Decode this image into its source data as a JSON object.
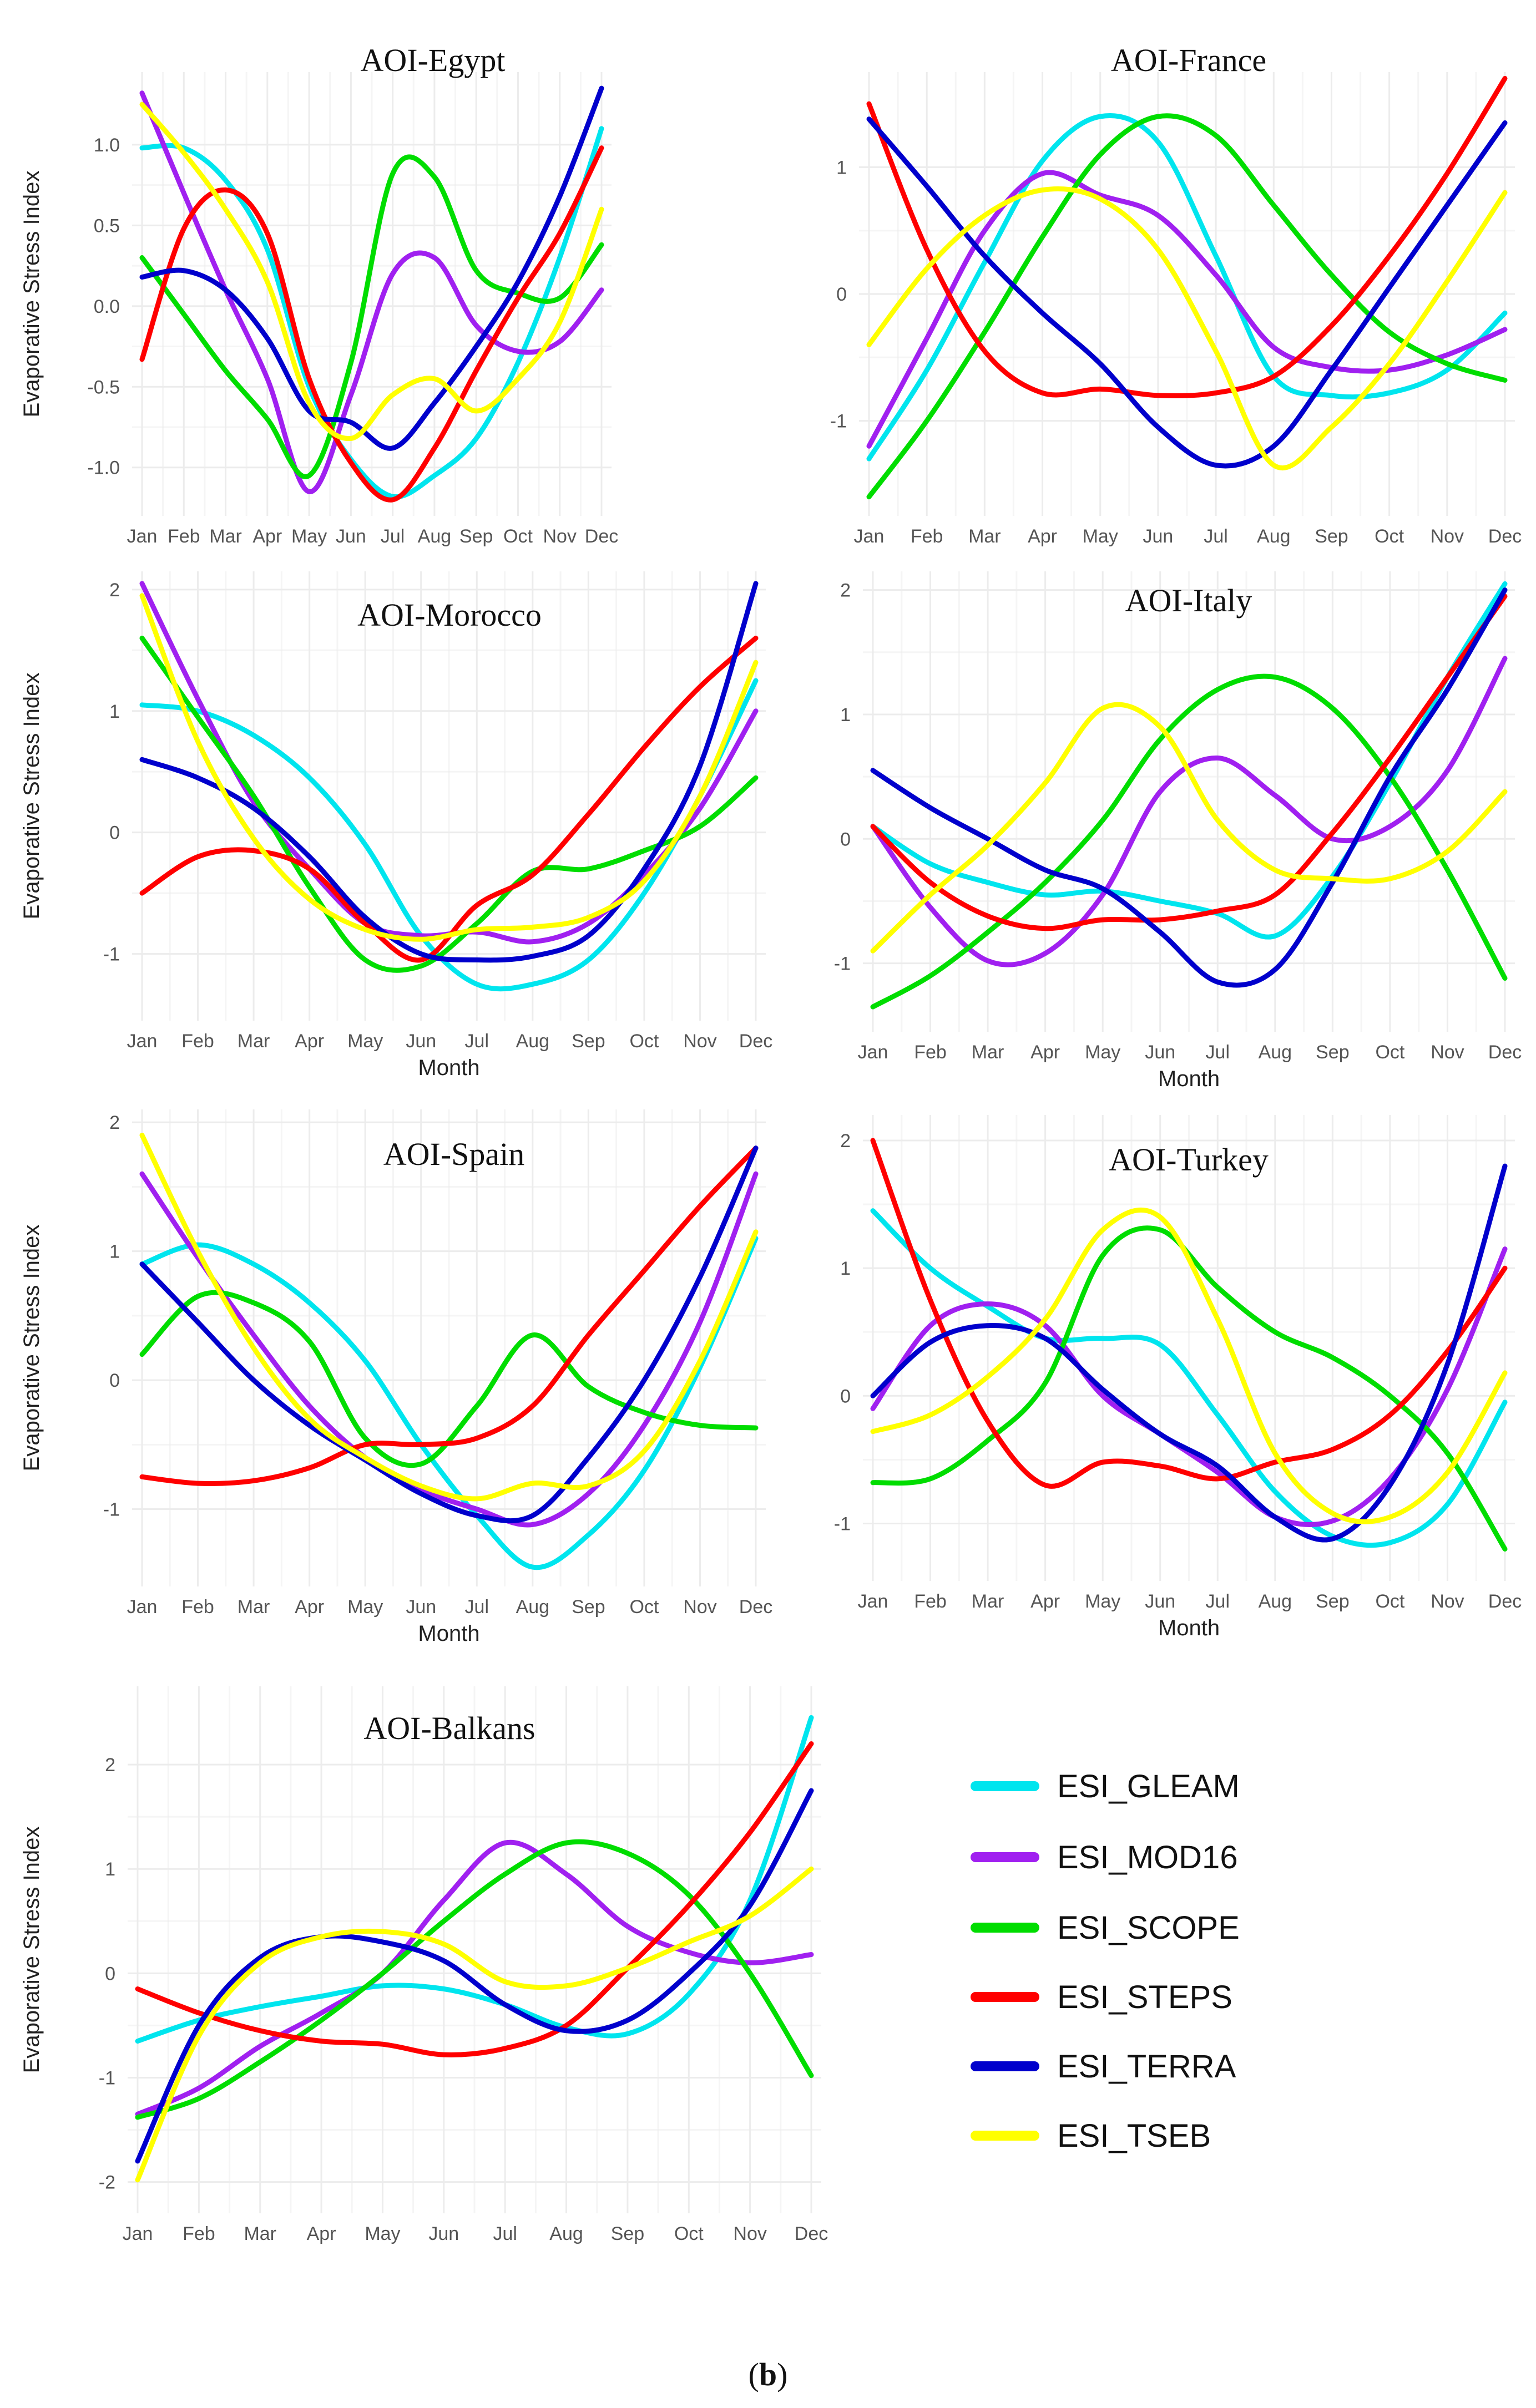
{
  "figure": {
    "caption_open": "(",
    "caption_letter": "b",
    "caption_close": ")"
  },
  "series_styles": [
    {
      "name": "ESI_GLEAM",
      "color": "#00e5ee"
    },
    {
      "name": "ESI_MOD16",
      "color": "#a020f0"
    },
    {
      "name": "ESI_SCOPE",
      "color": "#00dd00"
    },
    {
      "name": "ESI_STEPS",
      "color": "#ff0000"
    },
    {
      "name": "ESI_TERRA",
      "color": "#0000cc"
    },
    {
      "name": "ESI_TSEB",
      "color": "#ffff00"
    }
  ],
  "chart_data": [
    {
      "type": "line",
      "title": "AOI-Egypt",
      "xlabel": "",
      "ylabel": "Evaporative Stress Index",
      "categories": [
        "Jan",
        "Feb",
        "Mar",
        "Apr",
        "May",
        "Jun",
        "Jul",
        "Aug",
        "Sep",
        "Oct",
        "Nov",
        "Dec"
      ],
      "ylim": [
        -1.3,
        1.45
      ],
      "yticks": [
        1.0,
        0.5,
        0.0,
        -0.5,
        -1.0
      ],
      "ytick_labels": [
        "1.0",
        "0.5",
        "0.0",
        "-0.5",
        "-1.0"
      ],
      "series": [
        {
          "name": "ESI_GLEAM",
          "values": [
            0.98,
            0.98,
            0.78,
            0.35,
            -0.5,
            -0.95,
            -1.18,
            -1.05,
            -0.82,
            -0.35,
            0.3,
            1.1
          ]
        },
        {
          "name": "ESI_MOD16",
          "values": [
            1.32,
            0.7,
            0.1,
            -0.45,
            -1.15,
            -0.55,
            0.2,
            0.3,
            -0.12,
            -0.28,
            -0.22,
            0.1
          ]
        },
        {
          "name": "ESI_SCOPE",
          "values": [
            0.3,
            -0.05,
            -0.4,
            -0.7,
            -1.05,
            -0.35,
            0.82,
            0.8,
            0.22,
            0.08,
            0.05,
            0.38
          ]
        },
        {
          "name": "ESI_STEPS",
          "values": [
            -0.33,
            0.48,
            0.72,
            0.45,
            -0.45,
            -0.97,
            -1.2,
            -0.88,
            -0.4,
            0.05,
            0.45,
            0.98
          ]
        },
        {
          "name": "ESI_TERRA",
          "values": [
            0.18,
            0.22,
            0.1,
            -0.2,
            -0.65,
            -0.72,
            -0.88,
            -0.6,
            -0.25,
            0.15,
            0.68,
            1.35
          ]
        },
        {
          "name": "ESI_TSEB",
          "values": [
            1.25,
            0.95,
            0.6,
            0.15,
            -0.6,
            -0.82,
            -0.55,
            -0.45,
            -0.65,
            -0.45,
            -0.1,
            0.6
          ]
        }
      ]
    },
    {
      "type": "line",
      "title": "AOI-France",
      "xlabel": "",
      "ylabel": "",
      "categories": [
        "Jan",
        "Feb",
        "Mar",
        "Apr",
        "May",
        "Jun",
        "Jul",
        "Aug",
        "Sep",
        "Oct",
        "Nov",
        "Dec"
      ],
      "ylim": [
        -1.75,
        1.75
      ],
      "yticks": [
        1,
        0,
        -1
      ],
      "ytick_labels": [
        "1",
        "0",
        "-1"
      ],
      "series": [
        {
          "name": "ESI_GLEAM",
          "values": [
            -1.3,
            -0.6,
            0.25,
            1.05,
            1.4,
            1.2,
            0.3,
            -0.65,
            -0.8,
            -0.78,
            -0.6,
            -0.15
          ]
        },
        {
          "name": "ESI_MOD16",
          "values": [
            -1.2,
            -0.35,
            0.5,
            0.95,
            0.78,
            0.62,
            0.15,
            -0.42,
            -0.58,
            -0.6,
            -0.48,
            -0.28
          ]
        },
        {
          "name": "ESI_SCOPE",
          "values": [
            -1.6,
            -1.0,
            -0.3,
            0.45,
            1.1,
            1.4,
            1.25,
            0.7,
            0.15,
            -0.3,
            -0.55,
            -0.68
          ]
        },
        {
          "name": "ESI_STEPS",
          "values": [
            1.5,
            0.35,
            -0.45,
            -0.78,
            -0.75,
            -0.8,
            -0.78,
            -0.65,
            -0.25,
            0.3,
            0.95,
            1.7
          ]
        },
        {
          "name": "ESI_TERRA",
          "values": [
            1.38,
            0.85,
            0.3,
            -0.15,
            -0.55,
            -1.05,
            -1.35,
            -1.2,
            -0.6,
            0.05,
            0.7,
            1.35
          ]
        },
        {
          "name": "ESI_TSEB",
          "values": [
            -0.4,
            0.2,
            0.62,
            0.82,
            0.75,
            0.35,
            -0.45,
            -1.35,
            -1.05,
            -0.55,
            0.1,
            0.8
          ]
        }
      ]
    },
    {
      "type": "line",
      "title": "AOI-Morocco",
      "xlabel": "Month",
      "ylabel": "Evaporative Stress Index",
      "categories": [
        "Jan",
        "Feb",
        "Mar",
        "Apr",
        "May",
        "Jun",
        "Jul",
        "Aug",
        "Sep",
        "Oct",
        "Nov",
        "Dec"
      ],
      "ylim": [
        -1.55,
        2.15
      ],
      "yticks": [
        2,
        1,
        0,
        -1
      ],
      "ytick_labels": [
        "2",
        "1",
        "0",
        "-1"
      ],
      "series": [
        {
          "name": "ESI_GLEAM",
          "values": [
            1.05,
            1.0,
            0.8,
            0.45,
            -0.1,
            -0.85,
            -1.25,
            -1.25,
            -1.05,
            -0.5,
            0.3,
            1.25
          ]
        },
        {
          "name": "ESI_MOD16",
          "values": [
            2.05,
            1.1,
            0.25,
            -0.3,
            -0.75,
            -0.85,
            -0.82,
            -0.9,
            -0.75,
            -0.35,
            0.2,
            1.0
          ]
        },
        {
          "name": "ESI_SCOPE",
          "values": [
            1.6,
            0.95,
            0.3,
            -0.45,
            -1.05,
            -1.1,
            -0.75,
            -0.32,
            -0.3,
            -0.15,
            0.05,
            0.45
          ]
        },
        {
          "name": "ESI_STEPS",
          "values": [
            -0.5,
            -0.2,
            -0.15,
            -0.3,
            -0.75,
            -1.05,
            -0.6,
            -0.35,
            0.15,
            0.7,
            1.2,
            1.6
          ]
        },
        {
          "name": "ESI_TERRA",
          "values": [
            0.6,
            0.45,
            0.2,
            -0.2,
            -0.7,
            -1.0,
            -1.05,
            -1.02,
            -0.85,
            -0.3,
            0.55,
            2.05
          ]
        },
        {
          "name": "ESI_TSEB",
          "values": [
            1.95,
            0.75,
            -0.05,
            -0.55,
            -0.8,
            -0.88,
            -0.8,
            -0.78,
            -0.7,
            -0.4,
            0.3,
            1.4
          ]
        }
      ]
    },
    {
      "type": "line",
      "title": "AOI-Italy",
      "xlabel": "Month",
      "ylabel": "",
      "categories": [
        "Jan",
        "Feb",
        "Mar",
        "Apr",
        "May",
        "Jun",
        "Jul",
        "Aug",
        "Sep",
        "Oct",
        "Nov",
        "Dec"
      ],
      "ylim": [
        -1.55,
        2.15
      ],
      "yticks": [
        2,
        1,
        0,
        -1
      ],
      "ytick_labels": [
        "2",
        "1",
        "0",
        "-1"
      ],
      "series": [
        {
          "name": "ESI_GLEAM",
          "values": [
            0.1,
            -0.2,
            -0.35,
            -0.45,
            -0.42,
            -0.5,
            -0.6,
            -0.78,
            -0.3,
            0.45,
            1.3,
            2.05
          ]
        },
        {
          "name": "ESI_MOD16",
          "values": [
            0.1,
            -0.55,
            -0.98,
            -0.92,
            -0.45,
            0.38,
            0.65,
            0.35,
            0.0,
            0.1,
            0.55,
            1.45
          ]
        },
        {
          "name": "ESI_SCOPE",
          "values": [
            -1.35,
            -1.1,
            -0.75,
            -0.35,
            0.15,
            0.8,
            1.2,
            1.3,
            1.05,
            0.5,
            -0.25,
            -1.12
          ]
        },
        {
          "name": "ESI_STEPS",
          "values": [
            0.1,
            -0.35,
            -0.62,
            -0.72,
            -0.65,
            -0.65,
            -0.58,
            -0.45,
            0.05,
            0.65,
            1.3,
            1.95
          ]
        },
        {
          "name": "ESI_TERRA",
          "values": [
            0.55,
            0.25,
            0.0,
            -0.25,
            -0.4,
            -0.75,
            -1.15,
            -1.05,
            -0.35,
            0.5,
            1.2,
            2.0
          ]
        },
        {
          "name": "ESI_TSEB",
          "values": [
            -0.9,
            -0.45,
            -0.05,
            0.45,
            1.05,
            0.9,
            0.15,
            -0.25,
            -0.32,
            -0.32,
            -0.1,
            0.38
          ]
        }
      ]
    },
    {
      "type": "line",
      "title": "AOI-Spain",
      "xlabel": "Month",
      "ylabel": "Evaporative Stress Index",
      "categories": [
        "Jan",
        "Feb",
        "Mar",
        "Apr",
        "May",
        "Jun",
        "Jul",
        "Aug",
        "Sep",
        "Oct",
        "Nov",
        "Dec"
      ],
      "ylim": [
        -1.6,
        2.1
      ],
      "yticks": [
        2,
        1,
        0,
        -1
      ],
      "ytick_labels": [
        "2",
        "1",
        "0",
        "-1"
      ],
      "series": [
        {
          "name": "ESI_GLEAM",
          "values": [
            0.9,
            1.05,
            0.9,
            0.6,
            0.15,
            -0.5,
            -1.05,
            -1.45,
            -1.2,
            -0.7,
            0.1,
            1.1
          ]
        },
        {
          "name": "ESI_MOD16",
          "values": [
            1.6,
            0.95,
            0.35,
            -0.2,
            -0.6,
            -0.85,
            -1.0,
            -1.12,
            -0.88,
            -0.35,
            0.45,
            1.6
          ]
        },
        {
          "name": "ESI_SCOPE",
          "values": [
            0.2,
            0.65,
            0.6,
            0.3,
            -0.45,
            -0.65,
            -0.2,
            0.35,
            -0.05,
            -0.25,
            -0.35,
            -0.37
          ]
        },
        {
          "name": "ESI_STEPS",
          "values": [
            -0.75,
            -0.8,
            -0.78,
            -0.68,
            -0.5,
            -0.5,
            -0.45,
            -0.2,
            0.35,
            0.85,
            1.35,
            1.8
          ]
        },
        {
          "name": "ESI_TERRA",
          "values": [
            0.9,
            0.45,
            0.0,
            -0.35,
            -0.62,
            -0.88,
            -1.05,
            -1.05,
            -0.6,
            0.0,
            0.8,
            1.8
          ]
        },
        {
          "name": "ESI_TSEB",
          "values": [
            1.9,
            1.0,
            0.25,
            -0.3,
            -0.6,
            -0.82,
            -0.92,
            -0.8,
            -0.82,
            -0.55,
            0.15,
            1.15
          ]
        }
      ]
    },
    {
      "type": "line",
      "title": "AOI-Turkey",
      "xlabel": "Month",
      "ylabel": "",
      "categories": [
        "Jan",
        "Feb",
        "Mar",
        "Apr",
        "May",
        "Jun",
        "Jul",
        "Aug",
        "Sep",
        "Oct",
        "Nov",
        "Dec"
      ],
      "ylim": [
        -1.45,
        2.2
      ],
      "yticks": [
        2,
        1,
        0,
        -1
      ],
      "ytick_labels": [
        "2",
        "1",
        "0",
        "-1"
      ],
      "series": [
        {
          "name": "ESI_GLEAM",
          "values": [
            1.45,
            1.0,
            0.7,
            0.45,
            0.45,
            0.4,
            -0.15,
            -0.75,
            -1.1,
            -1.15,
            -0.85,
            -0.05
          ]
        },
        {
          "name": "ESI_MOD16",
          "values": [
            -0.1,
            0.55,
            0.72,
            0.55,
            0.0,
            -0.3,
            -0.6,
            -0.95,
            -0.98,
            -0.65,
            0.05,
            1.15
          ]
        },
        {
          "name": "ESI_SCOPE",
          "values": [
            -0.68,
            -0.65,
            -0.35,
            0.1,
            1.1,
            1.3,
            0.85,
            0.5,
            0.3,
            0.0,
            -0.45,
            -1.2
          ]
        },
        {
          "name": "ESI_STEPS",
          "values": [
            2.0,
            0.75,
            -0.2,
            -0.7,
            -0.52,
            -0.55,
            -0.65,
            -0.52,
            -0.42,
            -0.15,
            0.35,
            1.0
          ]
        },
        {
          "name": "ESI_TERRA",
          "values": [
            0.0,
            0.42,
            0.55,
            0.45,
            0.05,
            -0.3,
            -0.55,
            -0.95,
            -1.12,
            -0.7,
            0.25,
            1.8
          ]
        },
        {
          "name": "ESI_TSEB",
          "values": [
            -0.28,
            -0.15,
            0.15,
            0.6,
            1.3,
            1.4,
            0.6,
            -0.45,
            -0.92,
            -0.95,
            -0.6,
            0.18
          ]
        }
      ]
    },
    {
      "type": "line",
      "title": "AOI-Balkans",
      "xlabel": "",
      "ylabel": "Evaporative Stress Index",
      "categories": [
        "Jan",
        "Feb",
        "Mar",
        "Apr",
        "May",
        "Jun",
        "Jul",
        "Aug",
        "Sep",
        "Oct",
        "Nov",
        "Dec"
      ],
      "ylim": [
        -2.3,
        2.75
      ],
      "yticks": [
        2,
        1,
        0,
        -1,
        -2
      ],
      "ytick_labels": [
        "2",
        "1",
        "0",
        "-1",
        "-2"
      ],
      "series": [
        {
          "name": "ESI_GLEAM",
          "values": [
            -0.65,
            -0.45,
            -0.32,
            -0.22,
            -0.12,
            -0.15,
            -0.3,
            -0.52,
            -0.58,
            -0.2,
            0.7,
            2.45
          ]
        },
        {
          "name": "ESI_MOD16",
          "values": [
            -1.35,
            -1.1,
            -0.7,
            -0.38,
            0.0,
            0.7,
            1.25,
            0.95,
            0.45,
            0.2,
            0.1,
            0.18
          ]
        },
        {
          "name": "ESI_SCOPE",
          "values": [
            -1.38,
            -1.2,
            -0.85,
            -0.45,
            0.0,
            0.5,
            0.95,
            1.25,
            1.15,
            0.75,
            0.0,
            -0.98
          ]
        },
        {
          "name": "ESI_STEPS",
          "values": [
            -0.15,
            -0.38,
            -0.55,
            -0.65,
            -0.68,
            -0.78,
            -0.72,
            -0.5,
            0.05,
            0.65,
            1.35,
            2.2
          ]
        },
        {
          "name": "ESI_TERRA",
          "values": [
            -1.8,
            -0.5,
            0.15,
            0.35,
            0.3,
            0.12,
            -0.3,
            -0.55,
            -0.45,
            0.0,
            0.65,
            1.75
          ]
        },
        {
          "name": "ESI_TSEB",
          "values": [
            -1.98,
            -0.6,
            0.1,
            0.35,
            0.4,
            0.28,
            -0.08,
            -0.12,
            0.05,
            0.3,
            0.55,
            1.0
          ]
        }
      ]
    }
  ]
}
